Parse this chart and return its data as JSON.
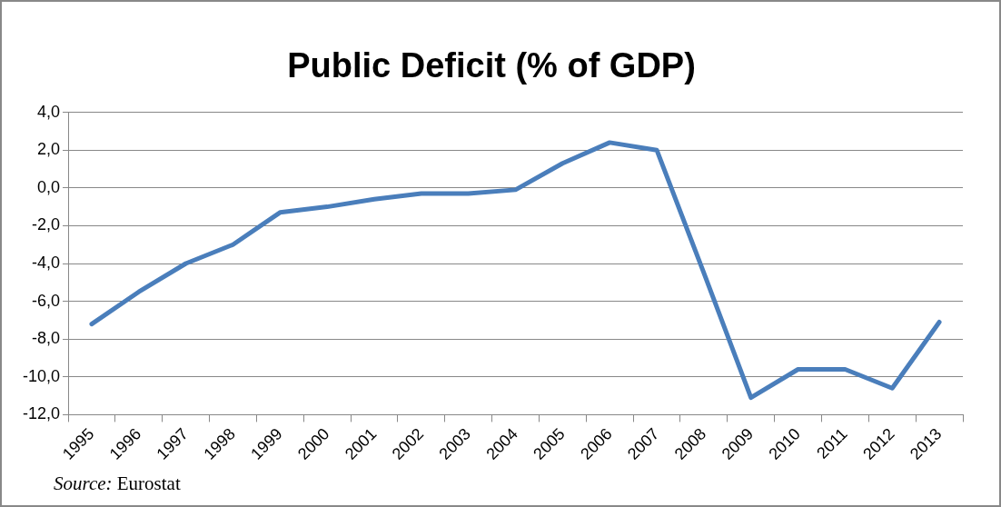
{
  "chart_data": {
    "type": "line",
    "title": "Public Deficit (% of GDP)",
    "categories": [
      "1995",
      "1996",
      "1997",
      "1998",
      "1999",
      "2000",
      "2001",
      "2002",
      "2003",
      "2004",
      "2005",
      "2006",
      "2007",
      "2008",
      "2009",
      "2010",
      "2011",
      "2012",
      "2013"
    ],
    "series": [
      {
        "color": "#4a7ebb",
        "values": [
          -7.2,
          -5.5,
          -4.0,
          -3.0,
          -1.3,
          -1.0,
          -0.6,
          -0.3,
          -0.3,
          -0.1,
          1.3,
          2.4,
          2.0,
          -4.5,
          -11.1,
          -9.6,
          -9.6,
          -10.6,
          -7.1
        ]
      }
    ],
    "ylim": [
      -12,
      4
    ],
    "yticks": [
      {
        "value": -12,
        "label": "-12,0"
      },
      {
        "value": -10,
        "label": "-10,0"
      },
      {
        "value": -8,
        "label": "-8,0"
      },
      {
        "value": -6,
        "label": "-6,0"
      },
      {
        "value": -4,
        "label": "-4,0"
      },
      {
        "value": -2,
        "label": "-2,0"
      },
      {
        "value": 0,
        "label": "0,0"
      },
      {
        "value": 2,
        "label": "2,0"
      },
      {
        "value": 4,
        "label": "4,0"
      }
    ],
    "grid": "y",
    "legend": false,
    "marker": "none",
    "line_style": "solid",
    "annotations": [
      "Source: Eurostat"
    ]
  }
}
